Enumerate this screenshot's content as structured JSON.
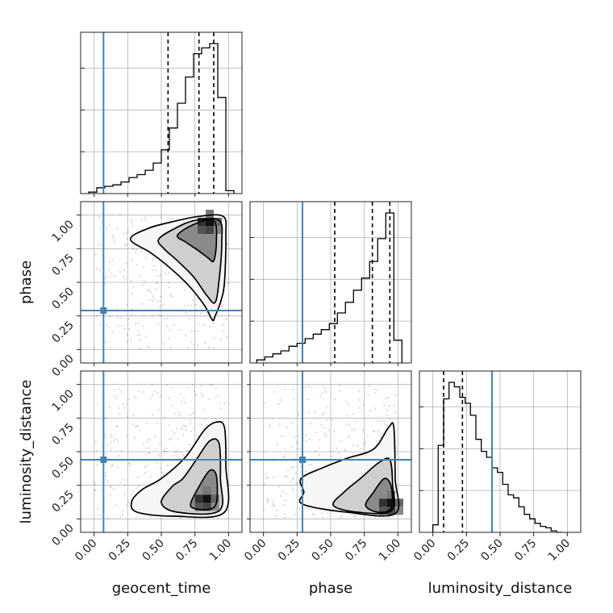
{
  "chart_data": {
    "type": "corner",
    "parameters": [
      "geocent_time",
      "phase",
      "luminosity_distance"
    ],
    "axis_range": [
      -0.1,
      1.1
    ],
    "ticks": [
      "0.00",
      "0.25",
      "0.50",
      "0.75",
      "1.00"
    ],
    "tick_values": [
      0,
      0.25,
      0.5,
      0.75,
      1.0
    ],
    "grid": true,
    "truth": {
      "geocent_time": 0.07,
      "phase": 0.29,
      "luminosity_distance": 0.44
    },
    "truth_color": "#4682b4",
    "histograms": [
      {
        "parameter": "geocent_time",
        "bin_edges": [
          -0.04,
          0.02,
          0.08,
          0.14,
          0.2,
          0.26,
          0.32,
          0.38,
          0.44,
          0.5,
          0.56,
          0.62,
          0.68,
          0.74,
          0.8,
          0.86,
          0.92,
          0.98,
          1.04
        ],
        "counts": [
          0.01,
          0.04,
          0.05,
          0.06,
          0.08,
          0.11,
          0.13,
          0.16,
          0.21,
          0.3,
          0.45,
          0.62,
          0.8,
          0.96,
          1.0,
          1.03,
          0.66,
          0.02
        ],
        "quantiles": [
          0.55,
          0.78,
          0.89
        ]
      },
      {
        "parameter": "phase",
        "bin_edges": [
          -0.05,
          0.01,
          0.07,
          0.13,
          0.19,
          0.25,
          0.31,
          0.37,
          0.43,
          0.49,
          0.55,
          0.61,
          0.67,
          0.73,
          0.79,
          0.85,
          0.91,
          0.97,
          1.03
        ],
        "counts": [
          0.02,
          0.04,
          0.06,
          0.08,
          0.11,
          0.13,
          0.16,
          0.19,
          0.22,
          0.26,
          0.33,
          0.4,
          0.48,
          0.56,
          0.67,
          0.82,
          0.99,
          0.15
        ],
        "quantiles": [
          0.53,
          0.81,
          0.94
        ]
      },
      {
        "parameter": "luminosity_distance",
        "bin_edges": [
          0.0,
          0.04,
          0.08,
          0.12,
          0.16,
          0.2,
          0.24,
          0.28,
          0.32,
          0.36,
          0.4,
          0.44,
          0.48,
          0.52,
          0.56,
          0.6,
          0.64,
          0.68,
          0.72,
          0.76,
          0.8,
          0.84,
          0.88,
          0.92,
          0.96
        ],
        "counts": [
          0.05,
          0.58,
          0.89,
          1.0,
          0.97,
          0.9,
          0.86,
          0.78,
          0.62,
          0.54,
          0.5,
          0.43,
          0.4,
          0.32,
          0.25,
          0.23,
          0.17,
          0.12,
          0.09,
          0.06,
          0.04,
          0.03,
          0.01,
          0.0
        ],
        "quantiles": [
          0.08,
          0.22,
          0.44
        ]
      }
    ],
    "density_panels": [
      {
        "x": "geocent_time",
        "y": "phase",
        "peak": [
          0.86,
          0.95
        ],
        "levels": [
          [
            [
              0.27,
              0.82
            ],
            [
              0.4,
              0.9
            ],
            [
              0.58,
              0.95
            ],
            [
              0.78,
              0.99
            ],
            [
              0.96,
              0.99
            ],
            [
              0.98,
              0.85
            ],
            [
              0.97,
              0.5
            ],
            [
              0.94,
              0.35
            ],
            [
              0.9,
              0.25
            ],
            [
              0.88,
              0.22
            ],
            [
              0.82,
              0.33
            ],
            [
              0.7,
              0.48
            ],
            [
              0.55,
              0.62
            ],
            [
              0.42,
              0.72
            ]
          ],
          [
            [
              0.48,
              0.82
            ],
            [
              0.6,
              0.9
            ],
            [
              0.75,
              0.96
            ],
            [
              0.93,
              0.96
            ],
            [
              0.95,
              0.8
            ],
            [
              0.93,
              0.52
            ],
            [
              0.9,
              0.35
            ],
            [
              0.84,
              0.4
            ],
            [
              0.74,
              0.54
            ],
            [
              0.62,
              0.66
            ],
            [
              0.52,
              0.75
            ]
          ],
          [
            [
              0.62,
              0.85
            ],
            [
              0.74,
              0.93
            ],
            [
              0.89,
              0.96
            ],
            [
              0.91,
              0.8
            ],
            [
              0.89,
              0.66
            ],
            [
              0.85,
              0.68
            ],
            [
              0.77,
              0.74
            ],
            [
              0.68,
              0.8
            ]
          ]
        ]
      },
      {
        "x": "geocent_time",
        "y": "luminosity_distance",
        "peak": [
          0.84,
          0.15
        ],
        "levels": [
          [
            [
              0.28,
              0.13
            ],
            [
              0.36,
              0.22
            ],
            [
              0.5,
              0.3
            ],
            [
              0.68,
              0.46
            ],
            [
              0.82,
              0.66
            ],
            [
              0.91,
              0.72
            ],
            [
              0.97,
              0.68
            ],
            [
              0.98,
              0.4
            ],
            [
              0.97,
              0.05
            ],
            [
              0.6,
              0.02
            ],
            [
              0.32,
              0.05
            ]
          ],
          [
            [
              0.5,
              0.12
            ],
            [
              0.58,
              0.24
            ],
            [
              0.66,
              0.3
            ],
            [
              0.76,
              0.44
            ],
            [
              0.86,
              0.58
            ],
            [
              0.93,
              0.56
            ],
            [
              0.94,
              0.3
            ],
            [
              0.93,
              0.06
            ],
            [
              0.62,
              0.05
            ]
          ],
          [
            [
              0.72,
              0.12
            ],
            [
              0.78,
              0.24
            ],
            [
              0.86,
              0.36
            ],
            [
              0.91,
              0.32
            ],
            [
              0.91,
              0.12
            ],
            [
              0.85,
              0.07
            ],
            [
              0.74,
              0.08
            ]
          ]
        ]
      },
      {
        "x": "phase",
        "y": "luminosity_distance",
        "peak": [
          0.95,
          0.12
        ],
        "levels": [
          [
            [
              0.28,
              0.3
            ],
            [
              0.3,
              0.2
            ],
            [
              0.29,
              0.11
            ],
            [
              0.62,
              0.05
            ],
            [
              0.98,
              0.04
            ],
            [
              0.98,
              0.3
            ],
            [
              0.97,
              0.68
            ],
            [
              0.93,
              0.68
            ],
            [
              0.82,
              0.52
            ],
            [
              0.62,
              0.45
            ],
            [
              0.44,
              0.38
            ]
          ],
          [
            [
              0.52,
              0.1
            ],
            [
              0.6,
              0.2
            ],
            [
              0.72,
              0.3
            ],
            [
              0.86,
              0.42
            ],
            [
              0.94,
              0.44
            ],
            [
              0.96,
              0.26
            ],
            [
              0.95,
              0.06
            ],
            [
              0.7,
              0.05
            ]
          ],
          [
            [
              0.76,
              0.1
            ],
            [
              0.82,
              0.2
            ],
            [
              0.9,
              0.3
            ],
            [
              0.95,
              0.24
            ],
            [
              0.95,
              0.08
            ],
            [
              0.85,
              0.05
            ]
          ]
        ]
      }
    ]
  }
}
